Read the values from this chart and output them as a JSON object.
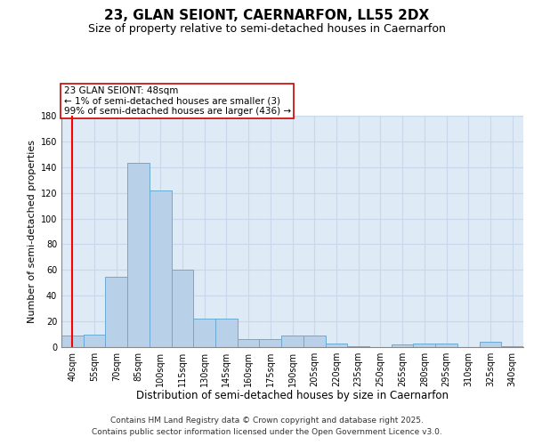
{
  "title1": "23, GLAN SEIONT, CAERNARFON, LL55 2DX",
  "title2": "Size of property relative to semi-detached houses in Caernarfon",
  "xlabel": "Distribution of semi-detached houses by size in Caernarfon",
  "ylabel": "Number of semi-detached properties",
  "categories": [
    "40sqm",
    "55sqm",
    "70sqm",
    "85sqm",
    "100sqm",
    "115sqm",
    "130sqm",
    "145sqm",
    "160sqm",
    "175sqm",
    "190sqm",
    "205sqm",
    "220sqm",
    "235sqm",
    "250sqm",
    "265sqm",
    "280sqm",
    "295sqm",
    "310sqm",
    "325sqm",
    "340sqm"
  ],
  "values": [
    9,
    10,
    55,
    143,
    122,
    60,
    22,
    22,
    6,
    6,
    9,
    9,
    3,
    1,
    0,
    2,
    3,
    3,
    0,
    4,
    1
  ],
  "bar_color": "#b8d0e8",
  "bar_edge_color": "#6aaad4",
  "grid_color": "#c8d8ea",
  "bg_color": "#deeaf6",
  "red_line_x": 0,
  "annotation_line1": "23 GLAN SEIONT: 48sqm",
  "annotation_line2": "← 1% of semi-detached houses are smaller (3)",
  "annotation_line3": "99% of semi-detached houses are larger (436) →",
  "annotation_box_color": "#ffffff",
  "annotation_edge_color": "#cc0000",
  "ylim": [
    0,
    180
  ],
  "yticks": [
    0,
    20,
    40,
    60,
    80,
    100,
    120,
    140,
    160,
    180
  ],
  "footer1": "Contains HM Land Registry data © Crown copyright and database right 2025.",
  "footer2": "Contains public sector information licensed under the Open Government Licence v3.0.",
  "title1_fontsize": 11,
  "title2_fontsize": 9,
  "tick_fontsize": 7,
  "xlabel_fontsize": 8.5,
  "ylabel_fontsize": 8,
  "annotation_fontsize": 7.5,
  "footer_fontsize": 6.5
}
